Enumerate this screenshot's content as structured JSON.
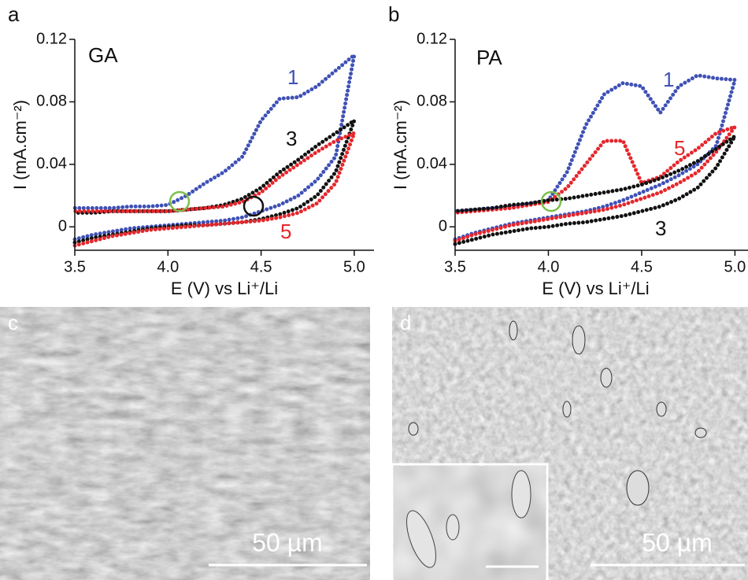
{
  "chart_data": [
    {
      "type": "line",
      "panel_label": "a",
      "annotation": "GA",
      "x_label": "E (V) vs Li⁺/Li",
      "y_label": "I (mA.cm⁻²)",
      "x": [
        3.5,
        3.6,
        3.7,
        3.8,
        3.9,
        4.0,
        4.1,
        4.2,
        4.3,
        4.4,
        4.5,
        4.6,
        4.7,
        4.8,
        4.9,
        5.0,
        4.9,
        4.8,
        4.7,
        4.6,
        4.5,
        4.4,
        4.3,
        4.2,
        4.1,
        4.0,
        3.9,
        3.8,
        3.7,
        3.6,
        3.5
      ],
      "series": [
        {
          "name": "1",
          "color": "#3f51b5",
          "values": [
            -0.008,
            -0.005,
            -0.003,
            -0.001,
            0.0,
            0.001,
            0.002,
            0.003,
            0.004,
            0.006,
            0.01,
            0.014,
            0.02,
            0.03,
            0.045,
            0.11,
            0.1,
            0.09,
            0.083,
            0.082,
            0.068,
            0.045,
            0.035,
            0.028,
            0.02,
            0.014,
            0.013,
            0.013,
            0.012,
            0.012,
            0.012
          ]
        },
        {
          "name": "3",
          "color": "#111111",
          "values": [
            -0.01,
            -0.007,
            -0.005,
            -0.003,
            -0.001,
            0.0,
            0.001,
            0.001,
            0.002,
            0.003,
            0.005,
            0.008,
            0.012,
            0.02,
            0.035,
            0.068,
            0.06,
            0.052,
            0.043,
            0.035,
            0.025,
            0.018,
            0.014,
            0.012,
            0.011,
            0.01,
            0.01,
            0.01,
            0.01,
            0.009,
            0.009
          ]
        },
        {
          "name": "5",
          "color": "#e5272d",
          "values": [
            -0.012,
            -0.009,
            -0.006,
            -0.004,
            -0.002,
            -0.001,
            0.0,
            0.001,
            0.002,
            0.003,
            0.004,
            0.006,
            0.009,
            0.015,
            0.028,
            0.06,
            0.055,
            0.048,
            0.04,
            0.032,
            0.022,
            0.016,
            0.013,
            0.012,
            0.011,
            0.01,
            0.01,
            0.01,
            0.01,
            0.01,
            0.01
          ]
        }
      ],
      "xlim": [
        3.5,
        5.106
      ],
      "ylim": [
        -0.015,
        0.12
      ],
      "xticks": [
        3.5,
        {
          "value": 4,
          "label": "4.0"
        },
        4.5,
        {
          "value": 5,
          "label": "5.0"
        }
      ],
      "yticks": [
        0,
        0.04,
        0.08,
        0.12
      ]
    },
    {
      "type": "line",
      "panel_label": "b",
      "annotation": "PA",
      "x_label": "E (V) vs Li⁺/Li",
      "y_label": "I (mA.cm⁻²)",
      "x": [
        3.5,
        3.6,
        3.7,
        3.8,
        3.9,
        4.0,
        4.1,
        4.2,
        4.3,
        4.4,
        4.5,
        4.6,
        4.7,
        4.8,
        4.9,
        5.0,
        4.9,
        4.8,
        4.7,
        4.6,
        4.5,
        4.4,
        4.3,
        4.2,
        4.1,
        4.0,
        3.9,
        3.8,
        3.7,
        3.6,
        3.5
      ],
      "series": [
        {
          "name": "1",
          "color": "#3f51b5",
          "values": [
            -0.008,
            -0.004,
            -0.001,
            0.002,
            0.004,
            0.006,
            0.008,
            0.01,
            0.013,
            0.017,
            0.022,
            0.027,
            0.033,
            0.04,
            0.052,
            0.094,
            0.095,
            0.097,
            0.09,
            0.073,
            0.09,
            0.092,
            0.085,
            0.065,
            0.035,
            0.017,
            0.015,
            0.013,
            0.012,
            0.011,
            0.01
          ]
        },
        {
          "name": "5",
          "color": "#e5272d",
          "values": [
            -0.009,
            -0.005,
            -0.002,
            0.001,
            0.003,
            0.005,
            0.007,
            0.009,
            0.011,
            0.014,
            0.018,
            0.022,
            0.028,
            0.035,
            0.048,
            0.064,
            0.06,
            0.05,
            0.042,
            0.032,
            0.028,
            0.055,
            0.055,
            0.04,
            0.025,
            0.016,
            0.014,
            0.012,
            0.011,
            0.01,
            0.009
          ]
        },
        {
          "name": "3",
          "color": "#111111",
          "values": [
            -0.011,
            -0.008,
            -0.005,
            -0.003,
            -0.001,
            0.0,
            0.002,
            0.003,
            0.005,
            0.007,
            0.01,
            0.013,
            0.018,
            0.025,
            0.038,
            0.058,
            0.05,
            0.042,
            0.036,
            0.031,
            0.027,
            0.024,
            0.022,
            0.02,
            0.018,
            0.017,
            0.015,
            0.014,
            0.012,
            0.011,
            0.01
          ]
        }
      ],
      "xlim": [
        3.5,
        5.07
      ],
      "ylim": [
        -0.015,
        0.12
      ],
      "xticks": [
        3.5,
        {
          "value": 4,
          "label": "4.0"
        },
        4.5,
        {
          "value": 5,
          "label": "5.0"
        }
      ],
      "yticks": [
        0,
        0.04,
        0.08,
        0.12
      ]
    }
  ],
  "images": [
    {
      "panel_label": "c",
      "scale_bar_label": "50 µm"
    },
    {
      "panel_label": "d",
      "scale_bar_label": "50 µm"
    }
  ]
}
